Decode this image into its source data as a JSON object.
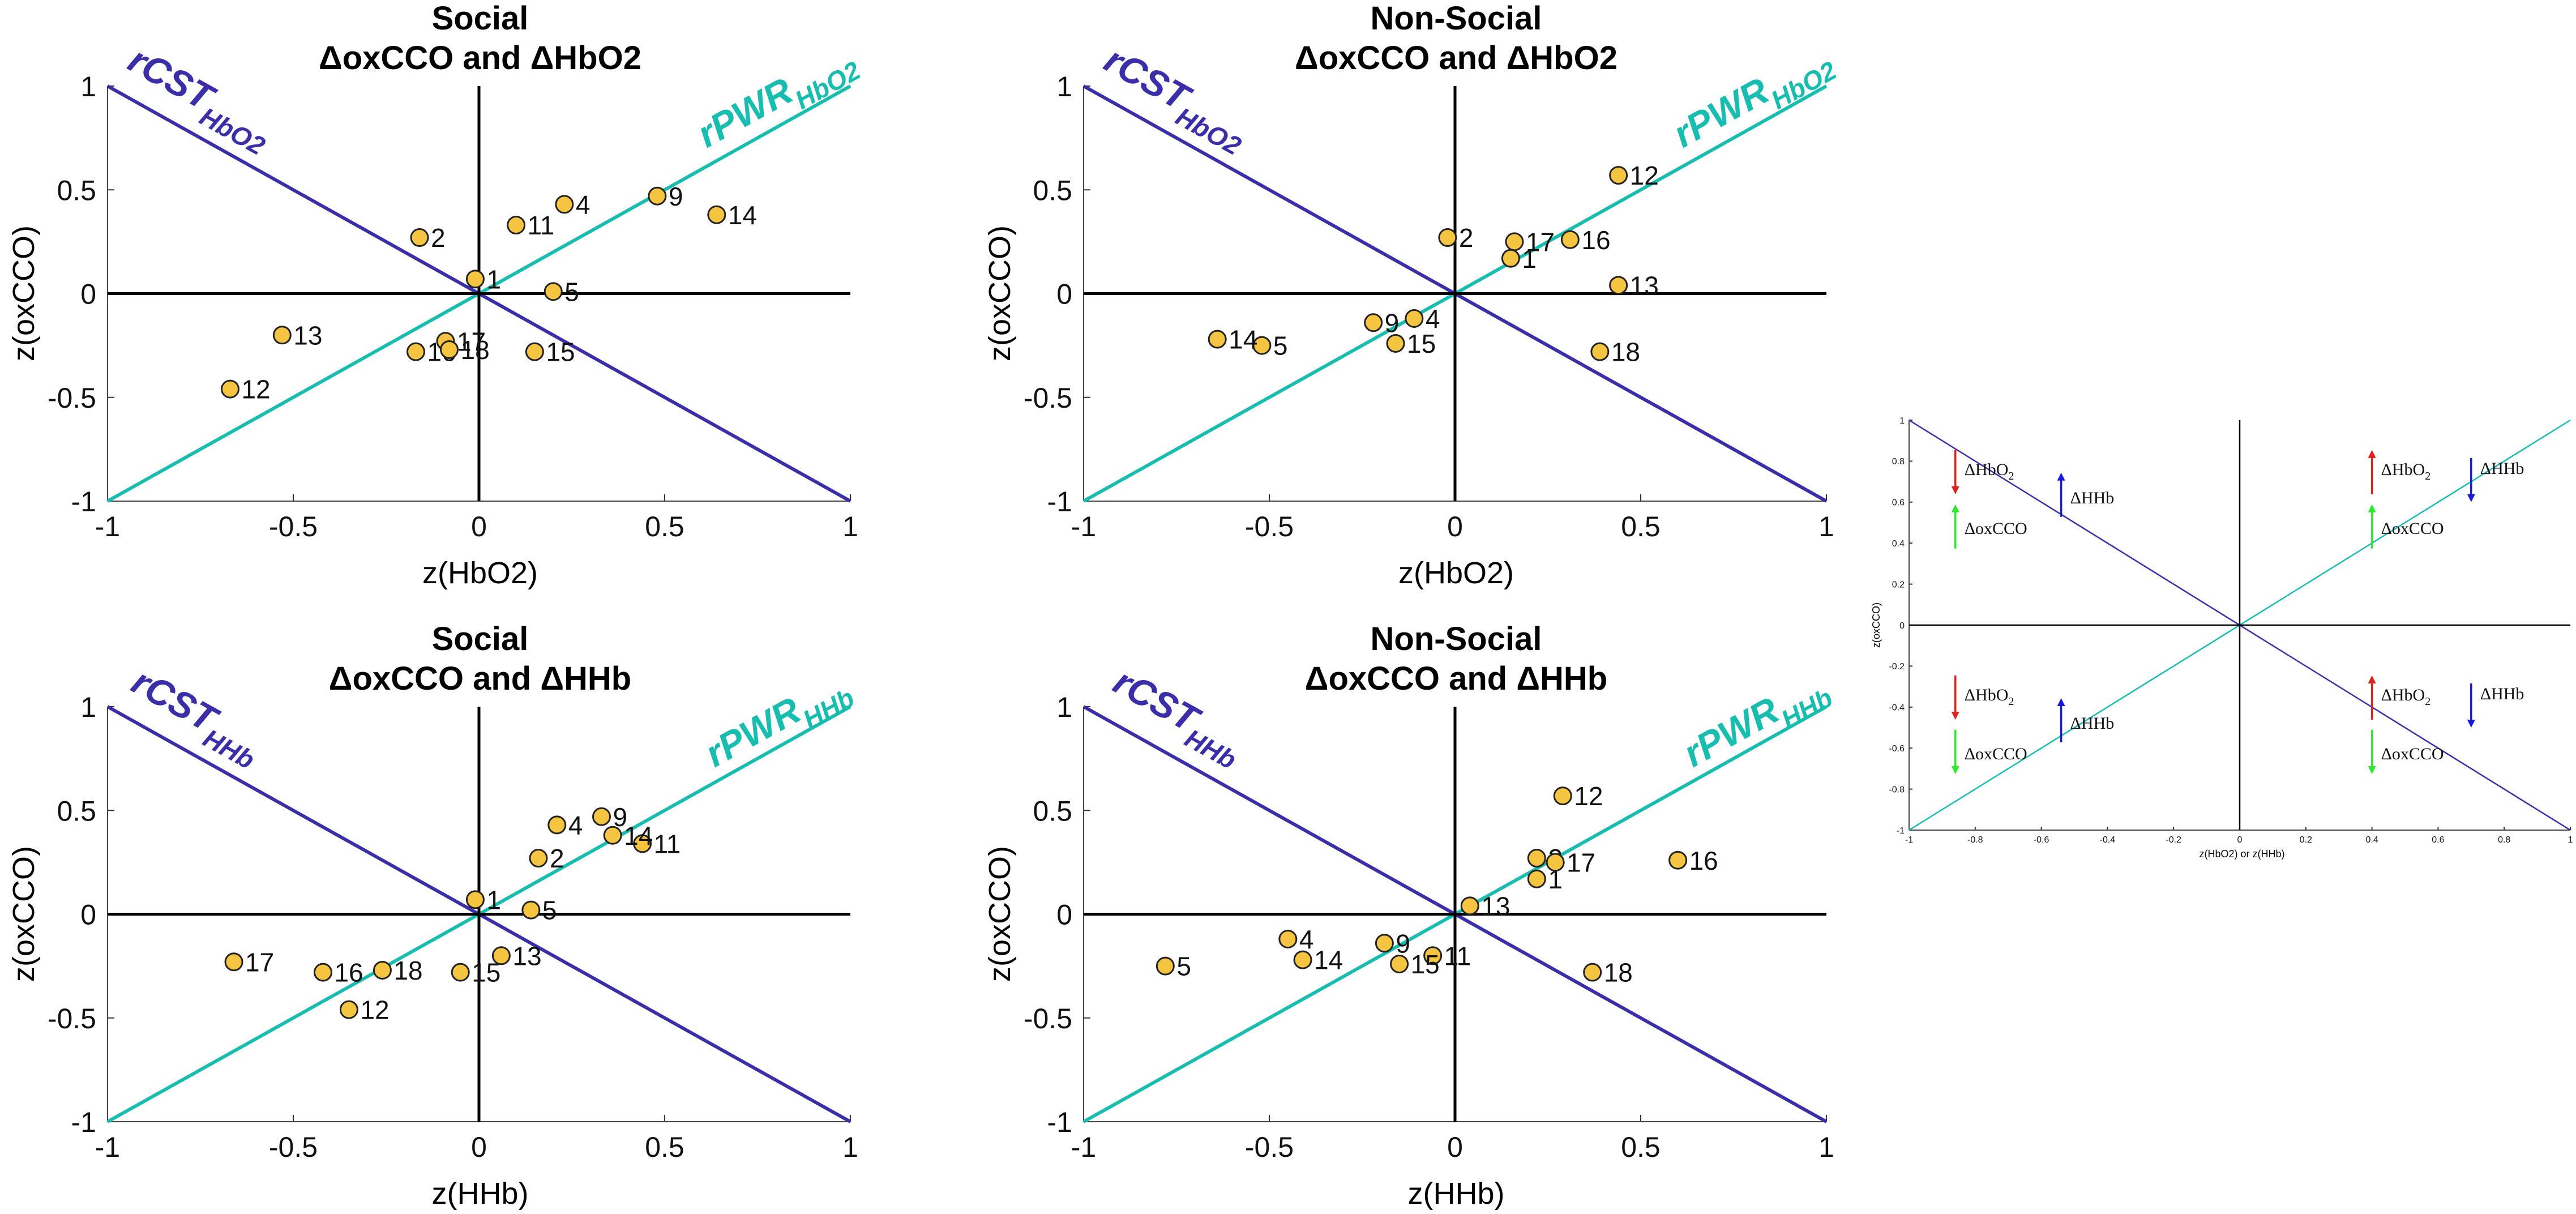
{
  "chart_data": [
    {
      "type": "scatter",
      "title_line1": "Social",
      "title_line2": "ΔoxCCO and ΔHbO2",
      "xlabel": "z(HbO2)",
      "ylabel": "z(oxCCO)",
      "xlim": [
        -1,
        1
      ],
      "ylim": [
        -1,
        1
      ],
      "xticks": [
        -1,
        -0.5,
        0,
        0.5,
        1
      ],
      "yticks": [
        -1,
        -0.5,
        0,
        0.5,
        1
      ],
      "x_tick_labels": [
        "-1",
        "-0.5",
        "0",
        "0.5",
        "1"
      ],
      "y_tick_labels": [
        "-1",
        "-0.5",
        "0",
        "0.5",
        "1"
      ],
      "lines": [
        {
          "name": "rCST",
          "subscript": "HbO2",
          "color": "#3a2fa8",
          "slope": -1
        },
        {
          "name": "rPWR",
          "subscript": "HbO2",
          "color": "#18bdb0",
          "slope": 1
        }
      ],
      "points": [
        {
          "label": "1",
          "x": -0.01,
          "y": 0.07
        },
        {
          "label": "2",
          "x": -0.16,
          "y": 0.27
        },
        {
          "label": "4",
          "x": 0.23,
          "y": 0.43
        },
        {
          "label": "5",
          "x": 0.2,
          "y": 0.01
        },
        {
          "label": "9",
          "x": 0.48,
          "y": 0.47
        },
        {
          "label": "11",
          "x": 0.1,
          "y": 0.33
        },
        {
          "label": "12",
          "x": -0.67,
          "y": -0.46
        },
        {
          "label": "13",
          "x": -0.53,
          "y": -0.2
        },
        {
          "label": "14",
          "x": 0.64,
          "y": 0.38
        },
        {
          "label": "15",
          "x": 0.15,
          "y": -0.28
        },
        {
          "label": "16",
          "x": -0.17,
          "y": -0.28
        },
        {
          "label": "17",
          "x": -0.09,
          "y": -0.23
        },
        {
          "label": "18",
          "x": -0.08,
          "y": -0.27
        }
      ]
    },
    {
      "type": "scatter",
      "title_line1": "Non-Social",
      "title_line2": "ΔoxCCO and ΔHbO2",
      "xlabel": "z(HbO2)",
      "ylabel": "z(oxCCO)",
      "xlim": [
        -1,
        1
      ],
      "ylim": [
        -1,
        1
      ],
      "xticks": [
        -1,
        -0.5,
        0,
        0.5,
        1
      ],
      "yticks": [
        -1,
        -0.5,
        0,
        0.5,
        1
      ],
      "x_tick_labels": [
        "-1",
        "-0.5",
        "0",
        "0.5",
        "1"
      ],
      "y_tick_labels": [
        "-1",
        "-0.5",
        "0",
        "0.5",
        "1"
      ],
      "lines": [
        {
          "name": "rCST",
          "subscript": "HbO2",
          "color": "#3a2fa8",
          "slope": -1
        },
        {
          "name": "rPWR",
          "subscript": "HbO2",
          "color": "#18bdb0",
          "slope": 1
        }
      ],
      "points": [
        {
          "label": "1",
          "x": 0.15,
          "y": 0.17
        },
        {
          "label": "2",
          "x": -0.02,
          "y": 0.27
        },
        {
          "label": "4",
          "x": -0.11,
          "y": -0.12
        },
        {
          "label": "5",
          "x": -0.52,
          "y": -0.25
        },
        {
          "label": "9",
          "x": -0.22,
          "y": -0.14
        },
        {
          "label": "12",
          "x": 0.44,
          "y": 0.57
        },
        {
          "label": "13",
          "x": 0.44,
          "y": 0.04
        },
        {
          "label": "14",
          "x": -0.64,
          "y": -0.22
        },
        {
          "label": "15",
          "x": -0.16,
          "y": -0.24
        },
        {
          "label": "16",
          "x": 0.31,
          "y": 0.26
        },
        {
          "label": "17",
          "x": 0.16,
          "y": 0.25
        },
        {
          "label": "18",
          "x": 0.39,
          "y": -0.28
        }
      ]
    },
    {
      "type": "scatter",
      "title_line1": "Social",
      "title_line2": "ΔoxCCO and ΔHHb",
      "xlabel": "z(HHb)",
      "ylabel": "z(oxCCO)",
      "xlim": [
        -1,
        1
      ],
      "ylim": [
        -1,
        1
      ],
      "xticks": [
        -1,
        -0.5,
        0,
        0.5,
        1
      ],
      "yticks": [
        -1,
        -0.5,
        0,
        0.5,
        1
      ],
      "x_tick_labels": [
        "-1",
        "-0.5",
        "0",
        "0.5",
        "1"
      ],
      "y_tick_labels": [
        "-1",
        "-0.5",
        "0",
        "0.5",
        "1"
      ],
      "lines": [
        {
          "name": "rCST",
          "subscript": "HHb",
          "color": "#3a2fa8",
          "slope": -1
        },
        {
          "name": "rPWR",
          "subscript": "HHb",
          "color": "#18bdb0",
          "slope": 1
        }
      ],
      "points": [
        {
          "label": "1",
          "x": -0.01,
          "y": 0.07
        },
        {
          "label": "2",
          "x": 0.16,
          "y": 0.27
        },
        {
          "label": "4",
          "x": 0.21,
          "y": 0.43
        },
        {
          "label": "5",
          "x": 0.14,
          "y": 0.02
        },
        {
          "label": "9",
          "x": 0.33,
          "y": 0.47
        },
        {
          "label": "11",
          "x": 0.44,
          "y": 0.34
        },
        {
          "label": "12",
          "x": -0.35,
          "y": -0.46
        },
        {
          "label": "13",
          "x": 0.06,
          "y": -0.2
        },
        {
          "label": "14",
          "x": 0.36,
          "y": 0.38
        },
        {
          "label": "15",
          "x": -0.05,
          "y": -0.28
        },
        {
          "label": "16",
          "x": -0.42,
          "y": -0.28
        },
        {
          "label": "17",
          "x": -0.66,
          "y": -0.23
        },
        {
          "label": "18",
          "x": -0.26,
          "y": -0.27
        }
      ]
    },
    {
      "type": "scatter",
      "title_line1": "Non-Social",
      "title_line2": "ΔoxCCO and ΔHHb",
      "xlabel": "z(HHb)",
      "ylabel": "z(oxCCO)",
      "xlim": [
        -1,
        1
      ],
      "ylim": [
        -1,
        1
      ],
      "xticks": [
        -1,
        -0.5,
        0,
        0.5,
        1
      ],
      "yticks": [
        -1,
        -0.5,
        0,
        0.5,
        1
      ],
      "x_tick_labels": [
        "-1",
        "-0.5",
        "0",
        "0.5",
        "1"
      ],
      "y_tick_labels": [
        "-1",
        "-0.5",
        "0",
        "0.5",
        "1"
      ],
      "lines": [
        {
          "name": "rCST",
          "subscript": "HHb",
          "color": "#3a2fa8",
          "slope": -1
        },
        {
          "name": "rPWR",
          "subscript": "HHb",
          "color": "#18bdb0",
          "slope": 1
        }
      ],
      "points": [
        {
          "label": "1",
          "x": 0.22,
          "y": 0.17
        },
        {
          "label": "2",
          "x": 0.22,
          "y": 0.27
        },
        {
          "label": "4",
          "x": -0.45,
          "y": -0.12
        },
        {
          "label": "5",
          "x": -0.78,
          "y": -0.25
        },
        {
          "label": "9",
          "x": -0.19,
          "y": -0.14
        },
        {
          "label": "11",
          "x": -0.06,
          "y": -0.2
        },
        {
          "label": "12",
          "x": 0.29,
          "y": 0.57
        },
        {
          "label": "13",
          "x": 0.04,
          "y": 0.04
        },
        {
          "label": "14",
          "x": -0.41,
          "y": -0.22
        },
        {
          "label": "15",
          "x": -0.15,
          "y": -0.24
        },
        {
          "label": "16",
          "x": 0.6,
          "y": 0.26
        },
        {
          "label": "17",
          "x": 0.27,
          "y": 0.25
        },
        {
          "label": "18",
          "x": 0.37,
          "y": -0.28
        }
      ]
    },
    {
      "type": "line",
      "title": "",
      "xlabel": "z(HbO2) or z(HHb)",
      "ylabel": "z(oxCCO)",
      "xlim": [
        -1,
        1
      ],
      "ylim": [
        -1,
        1
      ],
      "xticks": [
        -1,
        -0.8,
        -0.6,
        -0.4,
        -0.2,
        0,
        0.2,
        0.4,
        0.6,
        0.8,
        1
      ],
      "yticks": [
        -1,
        -0.8,
        -0.6,
        -0.4,
        -0.2,
        0,
        0.2,
        0.4,
        0.6,
        0.8,
        1
      ],
      "x_tick_labels": [
        "-1",
        "-0.8",
        "-0.6",
        "-0.4",
        "-0.2",
        "0",
        "0.2",
        "0.4",
        "0.6",
        "0.8",
        "1"
      ],
      "y_tick_labels": [
        "-1",
        "-0.8",
        "-0.6",
        "-0.4",
        "-0.2",
        "0",
        "0.2",
        "0.4",
        "0.6",
        "0.8",
        "1"
      ],
      "lines": [
        {
          "name": "cst",
          "color": "#3a2fa8",
          "slope": -1
        },
        {
          "name": "pwr",
          "color": "#18bdb0",
          "slope": 1
        }
      ],
      "quadrant_annotations": [
        {
          "quadrant": "top-left",
          "hbo2": "down",
          "oxcco": "up",
          "hhb": "up"
        },
        {
          "quadrant": "top-right",
          "hbo2": "up",
          "oxcco": "up",
          "hhb": "down"
        },
        {
          "quadrant": "bottom-left",
          "hbo2": "down",
          "oxcco": "down",
          "hhb": "up"
        },
        {
          "quadrant": "bottom-right",
          "hbo2": "up",
          "oxcco": "down",
          "hhb": "down"
        }
      ],
      "annotation_labels": {
        "hbo2": "ΔHbO",
        "hbo2_sub": "2",
        "oxcco": "ΔoxCCO",
        "hhb": "ΔHHb"
      }
    }
  ],
  "colors": {
    "cst_line": "#3a2fa8",
    "pwr_line": "#18bdb0",
    "point_fill": "#f5c542",
    "arrow_red": "#e0201a",
    "arrow_green": "#2ee82e",
    "arrow_blue": "#1a1adc"
  }
}
